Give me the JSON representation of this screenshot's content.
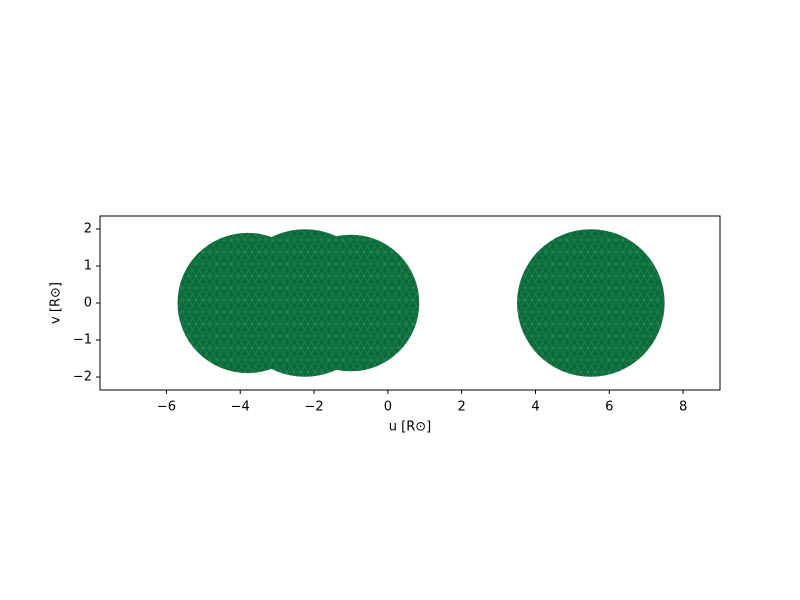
{
  "chart_data": {
    "type": "mesh",
    "x_label": "u [R⊙]",
    "y_label": "v [R⊙]",
    "x": [
      -3.8,
      -1.0,
      -2.25,
      5.5
    ],
    "values": [
      0,
      0,
      0,
      0
    ],
    "radius": [
      1.9,
      1.85,
      2.0,
      2.0
    ],
    "color": "#0b6b3a",
    "xlim": [
      -7.8,
      9.0
    ],
    "ylim": [
      -2.35,
      2.35
    ],
    "xticks": [
      {
        "value": -6,
        "label": "−6"
      },
      {
        "value": -4,
        "label": "−4"
      },
      {
        "value": -2,
        "label": "−2"
      },
      0,
      2,
      4,
      6,
      8
    ],
    "yticks": [
      {
        "value": -2,
        "label": "−2"
      },
      {
        "value": -1,
        "label": "−1"
      },
      0,
      1,
      2
    ],
    "grid": false
  }
}
